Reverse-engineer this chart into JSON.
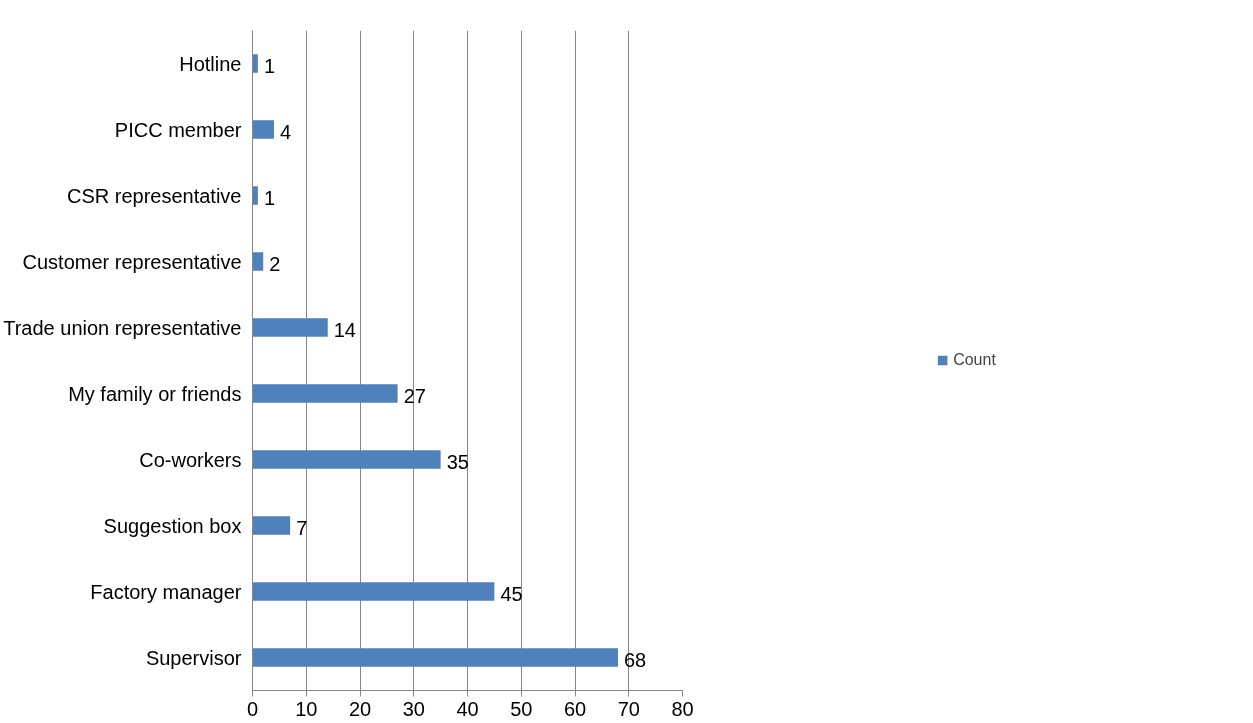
{
  "chart_data": {
    "type": "bar",
    "orientation": "horizontal",
    "categories": [
      "Hotline",
      "PICC member",
      "CSR representative",
      "Customer representative",
      "Trade union representative",
      "My family or friends",
      "Co-workers",
      "Suggestion box",
      "Factory manager",
      "Supervisor"
    ],
    "series": [
      {
        "name": "Count",
        "color": "#4f81bd",
        "values": [
          1,
          4,
          1,
          2,
          14,
          27,
          35,
          7,
          45,
          68
        ]
      }
    ],
    "xlim": [
      0,
      80
    ],
    "xticks": [
      0,
      10,
      20,
      30,
      40,
      50,
      60,
      70,
      80
    ],
    "grid": "x",
    "legend": "right",
    "data_labels": true
  }
}
